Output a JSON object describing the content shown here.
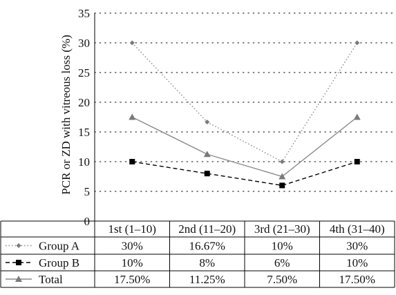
{
  "chart_data": {
    "type": "line",
    "ylabel": "PCR or ZD with vitreous loss (%)",
    "ylim": [
      0,
      35
    ],
    "yticks": [
      0,
      5,
      10,
      15,
      20,
      25,
      30,
      35
    ],
    "categories": [
      "1st (1–10)",
      "2nd (11–20)",
      "3rd (21–30)",
      "4th (31–40)"
    ],
    "grid": true,
    "series": [
      {
        "name": "Group A",
        "values": [
          30,
          16.67,
          10,
          30
        ],
        "labels": [
          "30%",
          "16.67%",
          "10%",
          "30%"
        ],
        "color": "#888888",
        "line": "dotted",
        "marker": "diamond"
      },
      {
        "name": "Group B",
        "values": [
          10,
          8,
          6,
          10
        ],
        "labels": [
          "10%",
          "8%",
          "6%",
          "10%"
        ],
        "color": "#000000",
        "line": "dashed",
        "marker": "square"
      },
      {
        "name": "Total",
        "values": [
          17.5,
          11.25,
          7.5,
          17.5
        ],
        "labels": [
          "17.50%",
          "11.25%",
          "7.50%",
          "17.50%"
        ],
        "color": "#888888",
        "line": "solid",
        "marker": "triangle"
      }
    ]
  }
}
